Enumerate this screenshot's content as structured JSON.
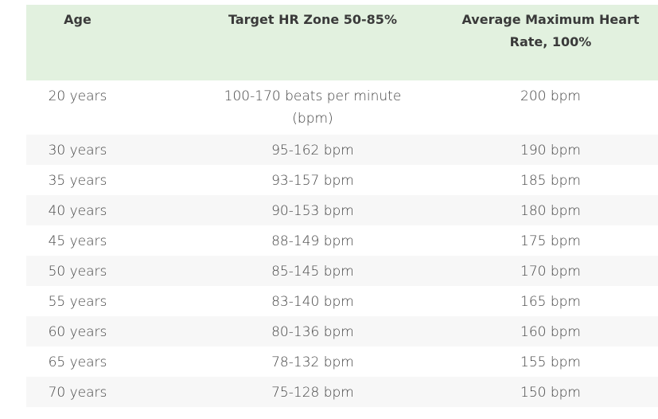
{
  "table": {
    "header": [
      "Age",
      "Target HR Zone 50-85%",
      "Average Maximum Heart Rate, 100%"
    ],
    "rows": [
      [
        "20 years",
        "100-170 beats per minute (bpm)",
        "200 bpm"
      ],
      [
        "30 years",
        "95-162 bpm",
        "190 bpm"
      ],
      [
        "35 years",
        "93-157 bpm",
        "185 bpm"
      ],
      [
        "40 years",
        "90-153 bpm",
        "180 bpm"
      ],
      [
        "45 years",
        "88-149 bpm",
        "175 bpm"
      ],
      [
        "50 years",
        "85-145 bpm",
        "170 bpm"
      ],
      [
        "55 years",
        "83-140 bpm",
        "165 bpm"
      ],
      [
        "60 years",
        "80-136 bpm",
        "160 bpm"
      ],
      [
        "65 years",
        "78-132 bpm",
        "155 bpm"
      ],
      [
        "70 years",
        "75-128 bpm",
        "150 bpm"
      ]
    ]
  }
}
